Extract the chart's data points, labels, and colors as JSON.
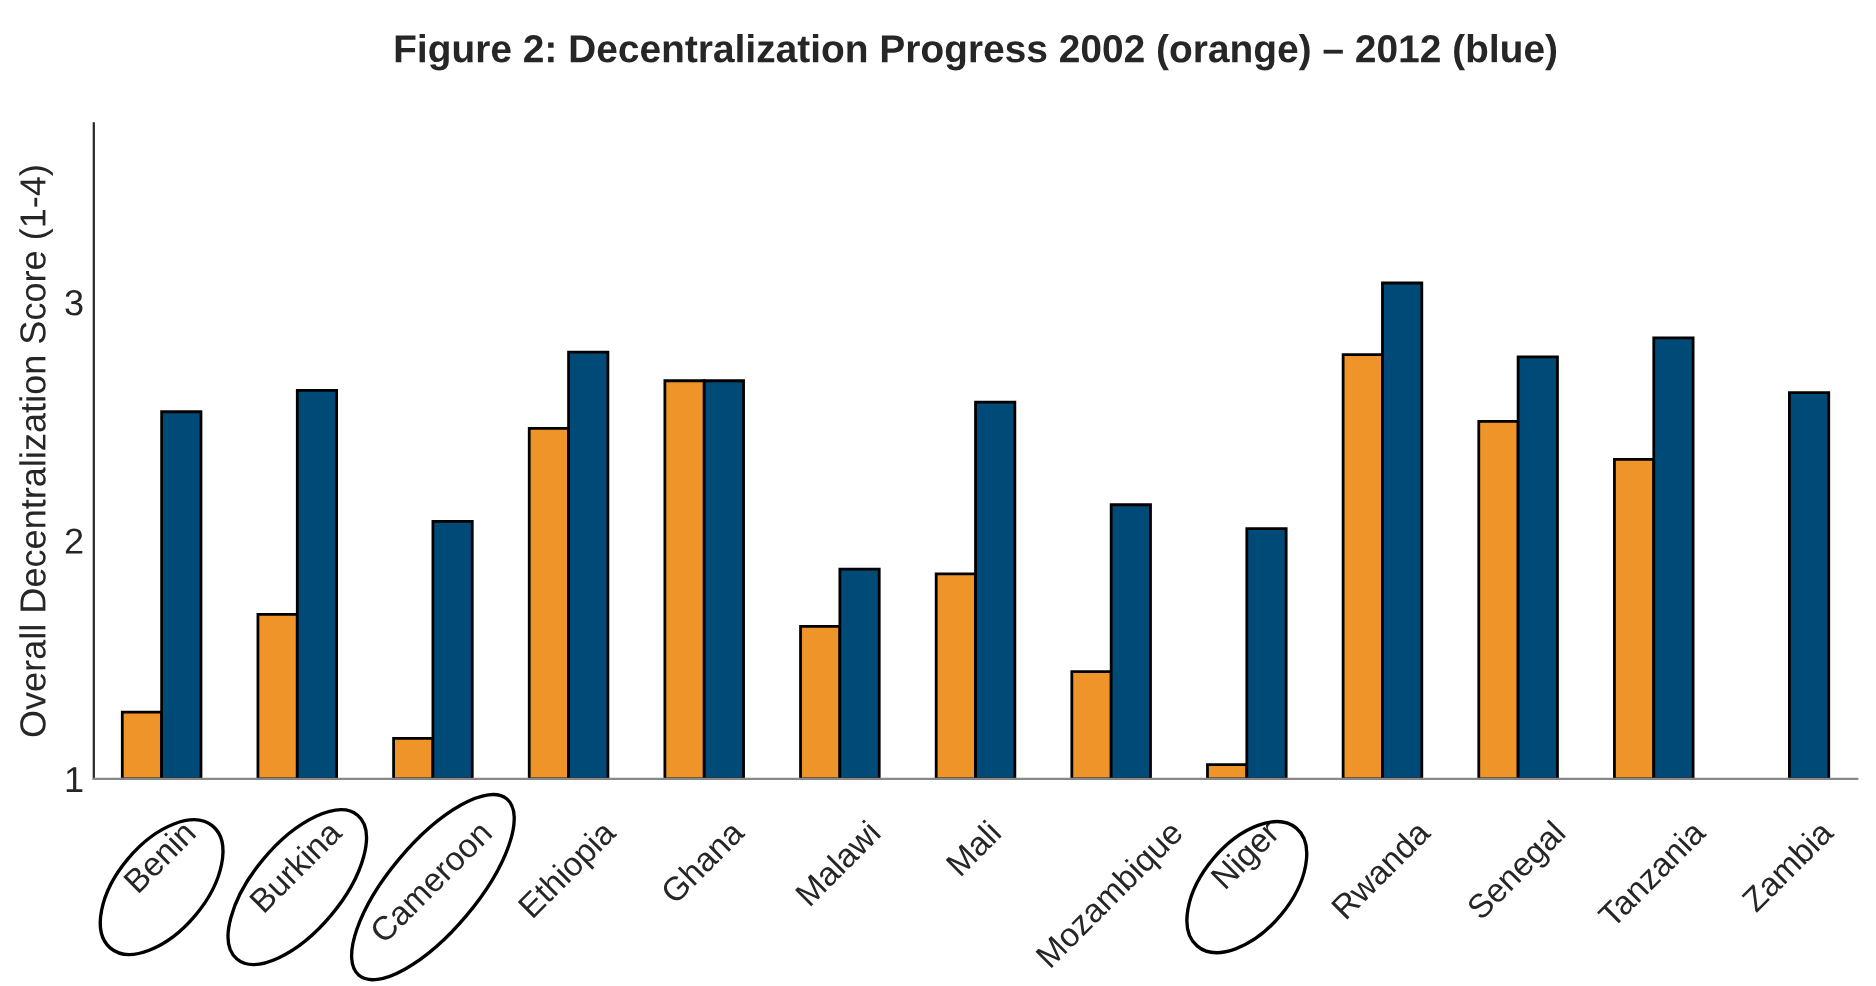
{
  "chart_data": {
    "type": "bar",
    "title": "Figure 2: Decentralization Progress 2002 (orange) – 2012 (blue)",
    "ylabel": "Overall Decentralization Score (1-4)",
    "categories": [
      "Benin",
      "Burkina",
      "Cameroon",
      "Ethiopia",
      "Ghana",
      "Malawi",
      "Mali",
      "Mozambique",
      "Niger",
      "Rwanda",
      "Senegal",
      "Tanzania",
      "Zambia"
    ],
    "series": [
      {
        "color": "#ee9428",
        "values": [
          1.28,
          1.69,
          1.17,
          2.47,
          2.67,
          1.64,
          1.86,
          1.45,
          1.06,
          2.78,
          2.5,
          2.34,
          null
        ]
      },
      {
        "color": "#004a78",
        "values": [
          2.54,
          2.63,
          2.08,
          2.79,
          2.67,
          1.88,
          2.58,
          2.15,
          2.05,
          3.08,
          2.77,
          2.85,
          2.62
        ]
      }
    ],
    "ylim": [
      1,
      3.75
    ],
    "yticks": [
      1,
      2,
      3
    ],
    "grid": false
  }
}
